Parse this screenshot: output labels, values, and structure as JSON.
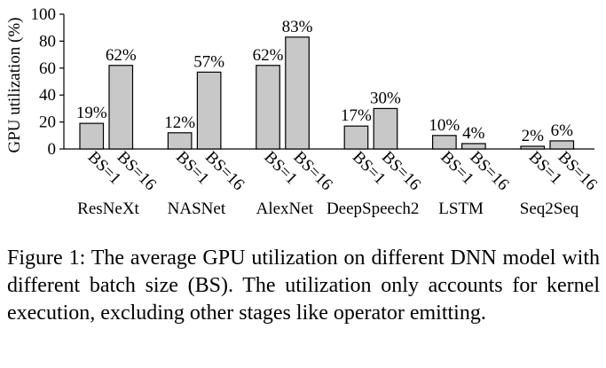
{
  "chart_data": {
    "type": "bar",
    "ylabel": "GPU utilization (%)",
    "ylim": [
      0,
      100
    ],
    "yticks": [
      "0",
      "20",
      "40",
      "60",
      "80",
      "100"
    ],
    "categories": [
      "ResNeXt",
      "NASNet",
      "AlexNet",
      "DeepSpeech2",
      "LSTM",
      "Seq2Seq"
    ],
    "bar_labels": [
      "BS=1",
      "BS=16"
    ],
    "values": [
      [
        19,
        62
      ],
      [
        12,
        57
      ],
      [
        62,
        83
      ],
      [
        17,
        30
      ],
      [
        10,
        4
      ],
      [
        2,
        6
      ]
    ],
    "data_labels": [
      [
        "19%",
        "62%"
      ],
      [
        "12%",
        "57%"
      ],
      [
        "62%",
        "83%"
      ],
      [
        "17%",
        "30%"
      ],
      [
        "10%",
        "4%"
      ],
      [
        "2%",
        "6%"
      ]
    ],
    "bar_color": "#c8c8c8",
    "grid": false
  },
  "caption": "Figure 1: The average GPU utilization on different DNN model with different batch size (BS). The utilization only accounts for kernel execution, excluding other stages like operator emitting."
}
